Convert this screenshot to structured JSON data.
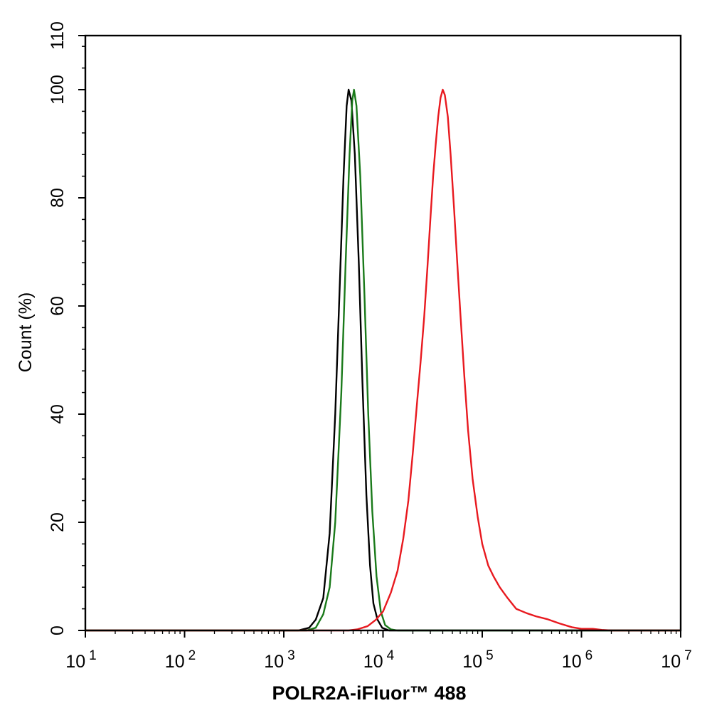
{
  "chart_data": {
    "type": "line",
    "title": "",
    "xlabel": "POLR2A-iFluor™ 488",
    "ylabel": "Count  (%)",
    "x_scale": "log",
    "xlim": [
      10,
      10000000
    ],
    "ylim": [
      0,
      110
    ],
    "grid": false,
    "legend": "none",
    "x_ticks": [
      {
        "value": 10,
        "base": "10",
        "exp": "1"
      },
      {
        "value": 100,
        "base": "10",
        "exp": "2"
      },
      {
        "value": 1000,
        "base": "10",
        "exp": "3"
      },
      {
        "value": 10000,
        "base": "10",
        "exp": "4"
      },
      {
        "value": 100000,
        "base": "10",
        "exp": "5"
      },
      {
        "value": 1000000,
        "base": "10",
        "exp": "6"
      },
      {
        "value": 10000000,
        "base": "10",
        "exp": "7"
      }
    ],
    "y_ticks": [
      {
        "value": 0,
        "label": "0"
      },
      {
        "value": 20,
        "label": "20"
      },
      {
        "value": 40,
        "label": "40"
      },
      {
        "value": 60,
        "label": "60"
      },
      {
        "value": 80,
        "label": "80"
      },
      {
        "value": 100,
        "label": "100"
      },
      {
        "value": 110,
        "label": "110"
      }
    ],
    "series": [
      {
        "color": "#000000",
        "points": [
          [
            10,
            0
          ],
          [
            1400,
            0
          ],
          [
            1800,
            0.5
          ],
          [
            2100,
            2
          ],
          [
            2500,
            6
          ],
          [
            2900,
            18
          ],
          [
            3300,
            40
          ],
          [
            3700,
            66
          ],
          [
            4000,
            84
          ],
          [
            4300,
            97
          ],
          [
            4500,
            100
          ],
          [
            4800,
            98
          ],
          [
            5200,
            88
          ],
          [
            5700,
            68
          ],
          [
            6200,
            46
          ],
          [
            6800,
            25
          ],
          [
            7400,
            12
          ],
          [
            8000,
            5
          ],
          [
            8800,
            2
          ],
          [
            9800,
            0.5
          ],
          [
            11500,
            0
          ],
          [
            10000000,
            0
          ]
        ]
      },
      {
        "color": "#1a7a1a",
        "points": [
          [
            10,
            0
          ],
          [
            1700,
            0
          ],
          [
            2100,
            0.5
          ],
          [
            2500,
            3
          ],
          [
            2900,
            8
          ],
          [
            3300,
            20
          ],
          [
            3800,
            44
          ],
          [
            4200,
            68
          ],
          [
            4600,
            88
          ],
          [
            4900,
            98
          ],
          [
            5100,
            100
          ],
          [
            5400,
            97
          ],
          [
            5900,
            84
          ],
          [
            6500,
            62
          ],
          [
            7100,
            40
          ],
          [
            7800,
            22
          ],
          [
            8600,
            10
          ],
          [
            9500,
            3.5
          ],
          [
            10500,
            1
          ],
          [
            12000,
            0.2
          ],
          [
            14000,
            0
          ],
          [
            10000000,
            0
          ]
        ]
      },
      {
        "color": "#e8191f",
        "points": [
          [
            10,
            0
          ],
          [
            4500,
            0
          ],
          [
            5500,
            0.2
          ],
          [
            7000,
            0.8
          ],
          [
            8500,
            2
          ],
          [
            10000,
            3.5
          ],
          [
            12000,
            7
          ],
          [
            14000,
            11
          ],
          [
            16000,
            17
          ],
          [
            18000,
            24
          ],
          [
            20000,
            33
          ],
          [
            22000,
            42
          ],
          [
            24000,
            50
          ],
          [
            26000,
            58
          ],
          [
            28000,
            67
          ],
          [
            30000,
            76
          ],
          [
            32000,
            84
          ],
          [
            34000,
            90
          ],
          [
            36000,
            95
          ],
          [
            38000,
            98.5
          ],
          [
            40000,
            100
          ],
          [
            42000,
            99
          ],
          [
            45000,
            95
          ],
          [
            48000,
            88
          ],
          [
            52000,
            78
          ],
          [
            56000,
            68
          ],
          [
            60000,
            59
          ],
          [
            66000,
            47
          ],
          [
            72000,
            37
          ],
          [
            80000,
            28
          ],
          [
            90000,
            21
          ],
          [
            100000,
            16
          ],
          [
            115000,
            12
          ],
          [
            130000,
            10
          ],
          [
            150000,
            8
          ],
          [
            180000,
            6
          ],
          [
            220000,
            4
          ],
          [
            280000,
            3.2
          ],
          [
            350000,
            2.6
          ],
          [
            450000,
            2.1
          ],
          [
            600000,
            1.3
          ],
          [
            800000,
            0.6
          ],
          [
            1000000,
            0.3
          ],
          [
            1300000,
            0.3
          ],
          [
            1600000,
            0.1
          ],
          [
            2000000,
            0
          ],
          [
            10000000,
            0
          ]
        ]
      }
    ]
  }
}
